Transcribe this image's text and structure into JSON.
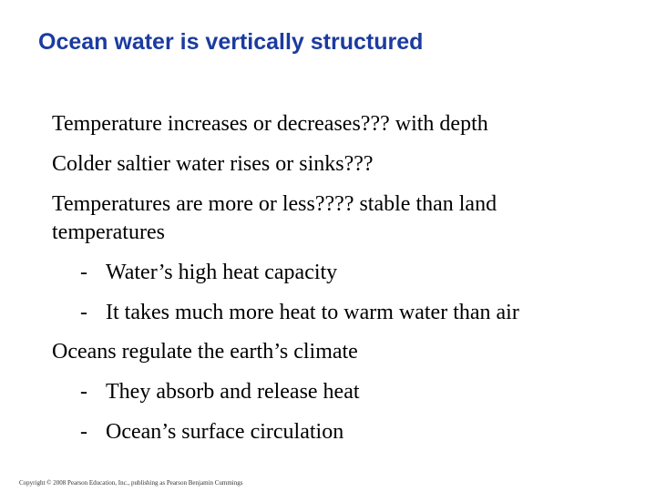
{
  "slide": {
    "title": "Ocean water is vertically structured",
    "bullets": [
      {
        "level": 1,
        "text": "Temperature increases or decreases??? with depth"
      },
      {
        "level": 1,
        "text": "Colder saltier water  rises or sinks???"
      },
      {
        "level": 1,
        "text": "Temperatures are more or less???? stable than land"
      },
      {
        "level": 1,
        "text": "temperatures"
      },
      {
        "level": 2,
        "marker": "-",
        "text": "Water’s high heat capacity"
      },
      {
        "level": 2,
        "marker": "-",
        "text": "It takes much more heat to warm water than air"
      },
      {
        "level": 1,
        "text": "Oceans regulate the earth’s climate"
      },
      {
        "level": 2,
        "marker": "-",
        "text": "They absorb and release heat"
      },
      {
        "level": 2,
        "marker": "-",
        "text": "Ocean’s surface circulation"
      }
    ],
    "footer": "Copyright © 2008 Pearson Education, Inc., publishing as Pearson Benjamin Cummings"
  },
  "colors": {
    "title": "#1b3ba0",
    "body": "#000000",
    "footer": "#333333",
    "background": "#ffffff"
  }
}
